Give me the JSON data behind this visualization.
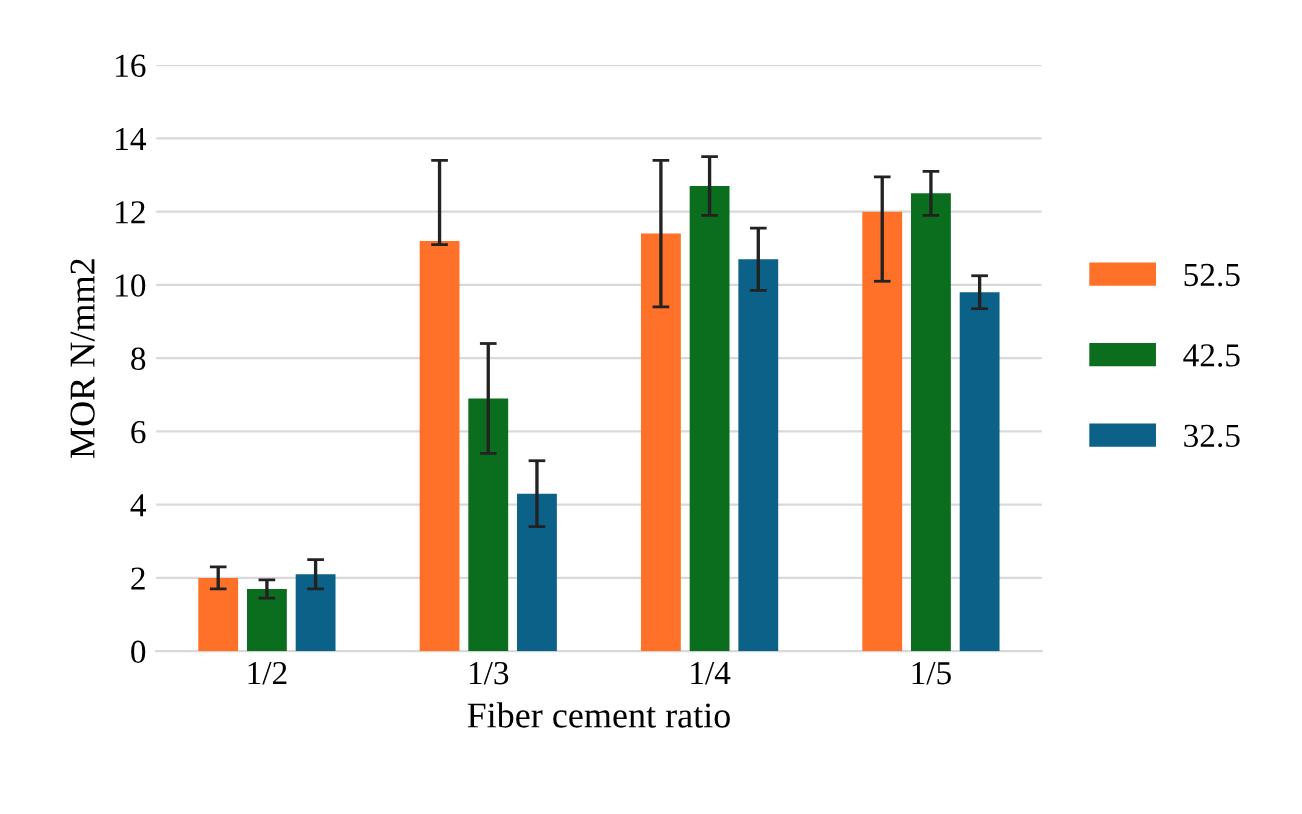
{
  "chart_data": {
    "type": "bar",
    "xlabel": "Fiber cement ratio",
    "ylabel": "MOR N/mm2",
    "categories": [
      "1/2",
      "1/3",
      "1/4",
      "1/5"
    ],
    "series": [
      {
        "name": "52.5",
        "color": "#ff7029",
        "values": [
          2.0,
          11.2,
          11.4,
          12.0
        ],
        "errors": [
          0.3,
          [
            11.1,
            13.4
          ],
          2.0,
          [
            10.1,
            12.95
          ]
        ]
      },
      {
        "name": "42.5",
        "color": "#0b6e1f",
        "values": [
          1.7,
          6.9,
          12.7,
          12.5
        ],
        "errors": [
          0.25,
          1.5,
          0.8,
          0.6
        ]
      },
      {
        "name": "32.5",
        "color": "#0b6187",
        "values": [
          2.1,
          4.3,
          10.7,
          9.8
        ],
        "errors": [
          0.4,
          0.9,
          0.85,
          0.45
        ]
      }
    ],
    "ylim": [
      0,
      16
    ],
    "yticks": [
      0,
      2,
      4,
      6,
      8,
      10,
      12,
      14,
      16
    ],
    "grid": "y",
    "legend": "right"
  }
}
